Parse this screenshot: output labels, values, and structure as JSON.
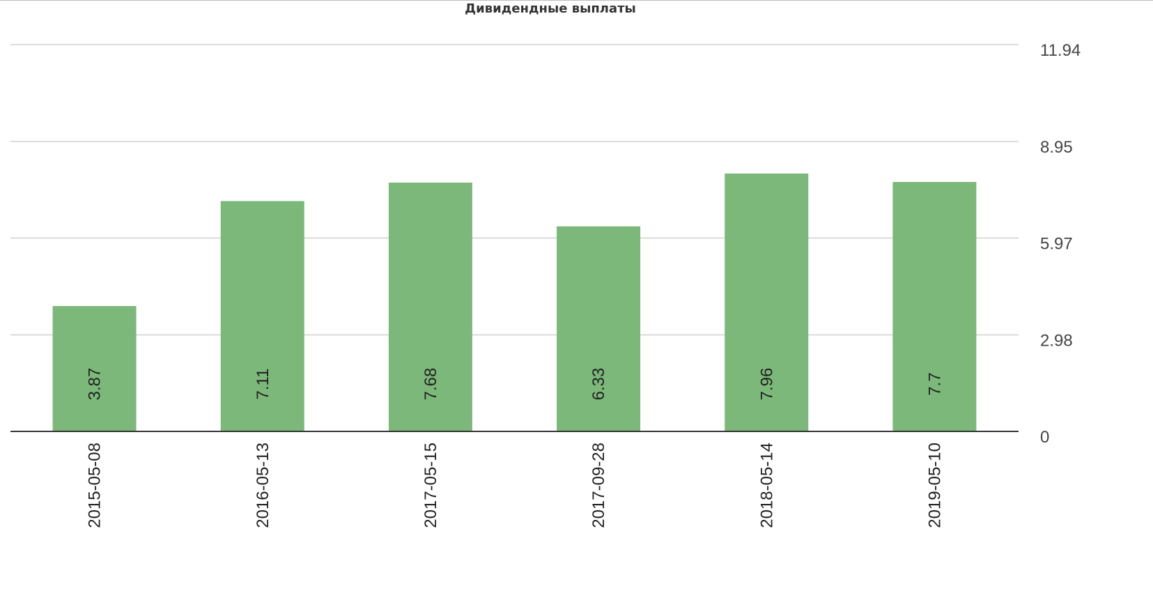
{
  "chart_data": {
    "type": "bar",
    "title": "Дивидендные выплаты",
    "categories": [
      "2015-05-08",
      "2016-05-13",
      "2017-05-15",
      "2017-09-28",
      "2018-05-14",
      "2019-05-10"
    ],
    "values": [
      3.87,
      7.11,
      7.68,
      6.33,
      7.96,
      7.7
    ],
    "value_labels": [
      "3.87",
      "7.11",
      "7.68",
      "6.33",
      "7.96",
      "7.7"
    ],
    "yticks": [
      0,
      2.98,
      5.97,
      8.95,
      11.94
    ],
    "ytick_labels": [
      "0",
      "2.98",
      "5.97",
      "8.95",
      "11.94"
    ],
    "ylim": [
      0,
      11.94
    ],
    "y_axis_position": "right",
    "grid": true,
    "bar_color": "#7cb87a",
    "xlabel": "",
    "ylabel": ""
  }
}
